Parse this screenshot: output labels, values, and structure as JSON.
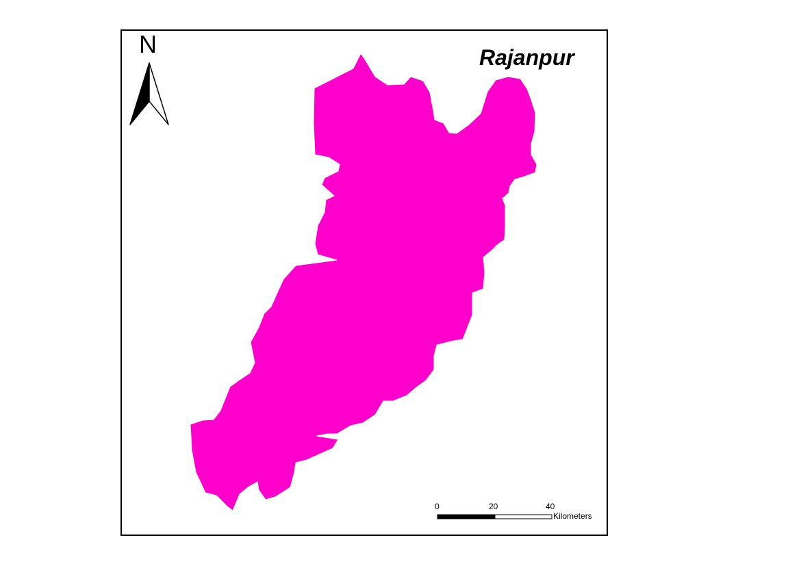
{
  "map": {
    "title": "Rajanpur",
    "region_color": "#ff00cc",
    "outline_color": "#ffffff",
    "north_arrow": {
      "label": "N",
      "icon": "north-arrow-icon"
    },
    "scale_bar": {
      "ticks": [
        "0",
        "20",
        "40"
      ],
      "units": "Kilometers"
    }
  }
}
